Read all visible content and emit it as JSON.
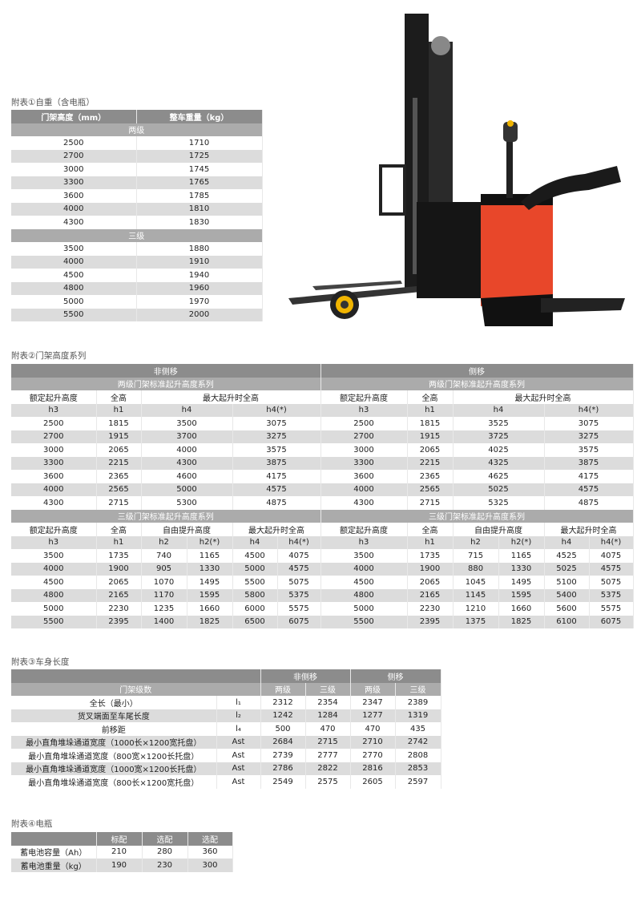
{
  "table1": {
    "caption": "附表①自重（含电瓶）",
    "headers": [
      "门架高度（mm）",
      "整车重量（kg）"
    ],
    "groups": [
      {
        "label": "两级",
        "rows": [
          [
            "2500",
            "1710"
          ],
          [
            "2700",
            "1725"
          ],
          [
            "3000",
            "1745"
          ],
          [
            "3300",
            "1765"
          ],
          [
            "3600",
            "1785"
          ],
          [
            "4000",
            "1810"
          ],
          [
            "4300",
            "1830"
          ]
        ]
      },
      {
        "label": "三级",
        "rows": [
          [
            "3500",
            "1880"
          ],
          [
            "4000",
            "1910"
          ],
          [
            "4500",
            "1940"
          ],
          [
            "4800",
            "1960"
          ],
          [
            "5000",
            "1970"
          ],
          [
            "5500",
            "2000"
          ]
        ]
      }
    ]
  },
  "table2": {
    "caption": "附表②门架高度系列",
    "sides": [
      "非侧移",
      "侧移"
    ],
    "two_stage": {
      "title": "两级门架标准起升高度系列",
      "group_headers": [
        "额定起升高度",
        "全高",
        "最大起升时全高"
      ],
      "sub_headers": [
        "h3",
        "h1",
        "h4",
        "h4(*)"
      ],
      "left": [
        [
          "2500",
          "1815",
          "3500",
          "3075"
        ],
        [
          "2700",
          "1915",
          "3700",
          "3275"
        ],
        [
          "3000",
          "2065",
          "4000",
          "3575"
        ],
        [
          "3300",
          "2215",
          "4300",
          "3875"
        ],
        [
          "3600",
          "2365",
          "4600",
          "4175"
        ],
        [
          "4000",
          "2565",
          "5000",
          "4575"
        ],
        [
          "4300",
          "2715",
          "5300",
          "4875"
        ]
      ],
      "right": [
        [
          "2500",
          "1815",
          "3525",
          "3075"
        ],
        [
          "2700",
          "1915",
          "3725",
          "3275"
        ],
        [
          "3000",
          "2065",
          "4025",
          "3575"
        ],
        [
          "3300",
          "2215",
          "4325",
          "3875"
        ],
        [
          "3600",
          "2365",
          "4625",
          "4175"
        ],
        [
          "4000",
          "2565",
          "5025",
          "4575"
        ],
        [
          "4300",
          "2715",
          "5325",
          "4875"
        ]
      ]
    },
    "three_stage": {
      "title": "三级门架标准起升高度系列",
      "group_headers": [
        "额定起升高度",
        "全高",
        "自由提升高度",
        "最大起升时全高"
      ],
      "sub_headers": [
        "h3",
        "h1",
        "h2",
        "h2(*)",
        "h4",
        "h4(*)"
      ],
      "left": [
        [
          "3500",
          "1735",
          "740",
          "1165",
          "4500",
          "4075"
        ],
        [
          "4000",
          "1900",
          "905",
          "1330",
          "5000",
          "4575"
        ],
        [
          "4500",
          "2065",
          "1070",
          "1495",
          "5500",
          "5075"
        ],
        [
          "4800",
          "2165",
          "1170",
          "1595",
          "5800",
          "5375"
        ],
        [
          "5000",
          "2230",
          "1235",
          "1660",
          "6000",
          "5575"
        ],
        [
          "5500",
          "2395",
          "1400",
          "1825",
          "6500",
          "6075"
        ]
      ],
      "right": [
        [
          "3500",
          "1735",
          "715",
          "1165",
          "4525",
          "4075"
        ],
        [
          "4000",
          "1900",
          "880",
          "1330",
          "5025",
          "4575"
        ],
        [
          "4500",
          "2065",
          "1045",
          "1495",
          "5100",
          "5075"
        ],
        [
          "4800",
          "2165",
          "1145",
          "1595",
          "5400",
          "5375"
        ],
        [
          "5000",
          "2230",
          "1210",
          "1660",
          "5600",
          "5575"
        ],
        [
          "5500",
          "2395",
          "1375",
          "1825",
          "6100",
          "6075"
        ]
      ]
    }
  },
  "table3": {
    "caption": "附表③车身长度",
    "side_headers": [
      "非侧移",
      "侧移"
    ],
    "row_header": "门架级数",
    "stage_headers": [
      "两级",
      "三级",
      "两级",
      "三级"
    ],
    "rows": [
      {
        "label": "全长（最小）",
        "symbol": "l₁",
        "values": [
          "2312",
          "2354",
          "2347",
          "2389"
        ]
      },
      {
        "label": "货叉端面至车尾长度",
        "symbol": "l₂",
        "values": [
          "1242",
          "1284",
          "1277",
          "1319"
        ]
      },
      {
        "label": "前移距",
        "symbol": "l₄",
        "values": [
          "500",
          "470",
          "470",
          "435"
        ]
      },
      {
        "label": "最小直角堆垛通道宽度（1000长×1200宽托盘）",
        "symbol": "Ast",
        "values": [
          "2684",
          "2715",
          "2710",
          "2742"
        ]
      },
      {
        "label": "最小直角堆垛通道宽度（800宽×1200长托盘）",
        "symbol": "Ast",
        "values": [
          "2739",
          "2777",
          "2770",
          "2808"
        ]
      },
      {
        "label": "最小直角堆垛通道宽度（1000宽×1200长托盘）",
        "symbol": "Ast",
        "values": [
          "2786",
          "2822",
          "2816",
          "2853"
        ]
      },
      {
        "label": "最小直角堆垛通道宽度（800长×1200宽托盘）",
        "symbol": "Ast",
        "values": [
          "2549",
          "2575",
          "2605",
          "2597"
        ]
      }
    ]
  },
  "table4": {
    "caption": "附表④电瓶",
    "headers": [
      "",
      "标配",
      "选配",
      "选配"
    ],
    "rows": [
      {
        "label": "蓄电池容量（Ah）",
        "values": [
          "210",
          "280",
          "360"
        ]
      },
      {
        "label": "蓄电池重量（kg）",
        "values": [
          "190",
          "230",
          "300"
        ]
      }
    ]
  },
  "colors": {
    "header_dark": "#8c8c8c",
    "header_light": "#ababab",
    "stripe": "#dcdcdc",
    "forklift_body": "#e8472a"
  }
}
